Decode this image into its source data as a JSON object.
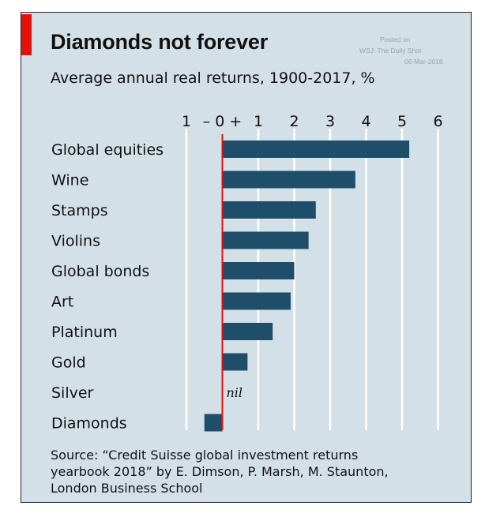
{
  "header": {
    "title": "Diamonds not forever",
    "subtitle": "Average annual real returns, 1900-2017, %"
  },
  "watermark": {
    "line1": "Posted on",
    "line2": "WSJ: The Daily Shot",
    "line3": "06-Mar-2018"
  },
  "source": {
    "line1": "Source: “Credit Suisse global investment returns",
    "line2": "yearbook 2018” by E. Dimson, P. Marsh, M. Staunton,",
    "line3": "London Business School"
  },
  "colors": {
    "background": "#d4e0e7",
    "bar": "#1f4e6a",
    "zero_line": "#e3120b",
    "accent_tab": "#e3120b",
    "grid": "#ffffff"
  },
  "chart_data": {
    "type": "bar",
    "orientation": "horizontal",
    "title": "Diamonds not forever",
    "subtitle": "Average annual real returns, 1900-2017, %",
    "categories": [
      "Global equities",
      "Wine",
      "Stamps",
      "Violins",
      "Global bonds",
      "Art",
      "Platinum",
      "Gold",
      "Silver",
      "Diamonds"
    ],
    "values": [
      5.2,
      3.7,
      2.6,
      2.4,
      2.0,
      1.9,
      1.4,
      0.7,
      0.0,
      -0.5
    ],
    "xlim": [
      -1,
      6
    ],
    "ticks": [
      -1,
      0,
      1,
      2,
      3,
      4,
      5,
      6
    ],
    "tick_labels": [
      "1",
      "– 0 +",
      "1",
      "2",
      "3",
      "4",
      "5",
      "6"
    ],
    "annotations": [
      {
        "category": "Silver",
        "text": "nil"
      }
    ],
    "grid": true,
    "legend": "none"
  }
}
